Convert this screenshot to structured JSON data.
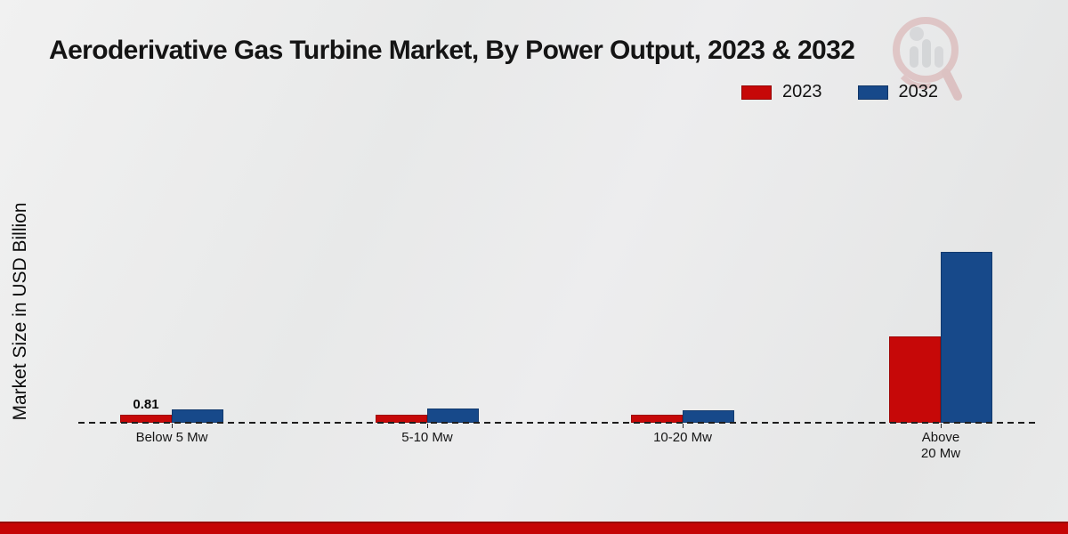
{
  "title": "Aeroderivative Gas Turbine Market, By Power Output, 2023 & 2032",
  "ylabel": "Market Size in USD Billion",
  "footer": {
    "accent_color": "#c50505"
  },
  "watermark": {
    "name": "market-research-logo"
  },
  "chart_data": {
    "type": "bar",
    "title": "Aeroderivative Gas Turbine Market, By Power Output, 2023 & 2032",
    "ylabel": "Market Size in USD Billion",
    "xlabel": "",
    "categories": [
      "Below 5 Mw",
      "5-10 Mw",
      "10-20 Mw",
      "Above 20 Mw"
    ],
    "series": [
      {
        "name": "2023",
        "color": "#c60808",
        "border_color": "#9e0606",
        "values": [
          0.81,
          0.85,
          0.78,
          8.75
        ]
      },
      {
        "name": "2032",
        "color": "#17498a",
        "border_color": "#123a6e",
        "values": [
          1.35,
          1.4,
          1.25,
          17.3
        ]
      }
    ],
    "value_labels": [
      {
        "category_index": 0,
        "series_index": 0,
        "text": "0.81"
      }
    ],
    "ylim": [
      0,
      18.5
    ],
    "grid": false,
    "baseline_style": "dashed",
    "legend_position": "top-right"
  }
}
